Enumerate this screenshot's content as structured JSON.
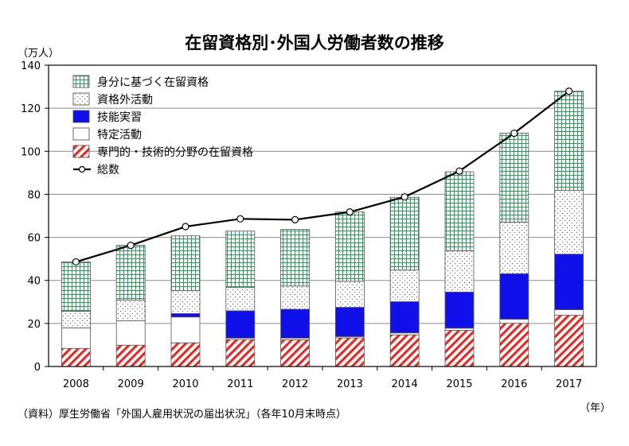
{
  "title": "在留資格別･外国人労働者数の推移",
  "y_unit_label": "（万人）",
  "x_unit_label": "（年）",
  "source": "（資料）厚生労働省「外国人雇用状況の届出状況」（各年10月末時点）",
  "chart_data": {
    "type": "bar",
    "stacked": true,
    "categories": [
      "2008",
      "2009",
      "2010",
      "2011",
      "2012",
      "2013",
      "2014",
      "2015",
      "2016",
      "2017"
    ],
    "ylim": [
      0,
      140
    ],
    "yticks": [
      0,
      20,
      40,
      60,
      80,
      100,
      120,
      140
    ],
    "series": [
      {
        "key": "senmon",
        "name": "専門的・技術的分野の在留資格",
        "pattern": "diagonal-hatch",
        "color": "#d9302b",
        "values": [
          8.4,
          9.9,
          11.0,
          12.5,
          12.4,
          13.3,
          14.7,
          16.8,
          20.1,
          23.8
        ]
      },
      {
        "key": "tokutei",
        "name": "特定活動",
        "pattern": "solid-white",
        "color": "#ffffff",
        "values": [
          9.5,
          11.3,
          12.0,
          0.7,
          0.8,
          0.6,
          0.9,
          1.0,
          1.9,
          2.6
        ]
      },
      {
        "key": "ginou",
        "name": "技能実習",
        "pattern": "solid",
        "color": "#1010e8",
        "values": [
          0,
          0,
          1.6,
          12.7,
          13.4,
          13.6,
          14.5,
          16.8,
          21.1,
          25.8
        ]
      },
      {
        "key": "shikakugai",
        "name": "資格外活動",
        "pattern": "dots",
        "color": "#555555",
        "values": [
          7.8,
          9.6,
          10.7,
          10.8,
          10.8,
          12.1,
          14.7,
          19.2,
          24.0,
          29.7
        ]
      },
      {
        "key": "mibun",
        "name": "身分に基づく在留資格",
        "pattern": "grid",
        "color": "#2e9a5a",
        "values": [
          22.9,
          25.5,
          25.4,
          26.2,
          26.3,
          32.2,
          33.8,
          36.7,
          41.3,
          46.0
        ]
      }
    ],
    "total": {
      "name": "総数",
      "type": "line",
      "values": [
        48.6,
        56.3,
        65.0,
        68.6,
        68.2,
        71.8,
        78.8,
        90.8,
        108.4,
        127.9
      ]
    },
    "legend_order": [
      "mibun",
      "shikakugai",
      "ginou",
      "tokutei",
      "senmon",
      "total"
    ],
    "legend_position": "top-left",
    "grid": "horizontal"
  }
}
